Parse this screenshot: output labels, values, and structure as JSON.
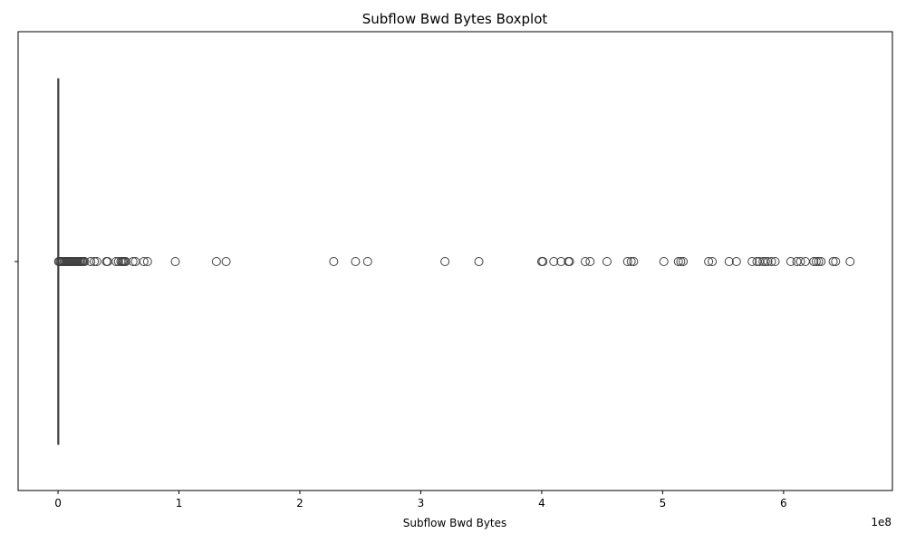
{
  "chart_data": {
    "type": "boxplot",
    "title": "Subflow Bwd Bytes Boxplot",
    "xlabel": "Subflow Bwd Bytes",
    "ylabel": "",
    "x_offset_label": "1e8",
    "xlim": [
      -0.33,
      6.9
    ],
    "x_ticks": [
      0,
      1,
      2,
      3,
      4,
      5,
      6
    ],
    "x_tick_labels": [
      "0",
      "1",
      "2",
      "3",
      "4",
      "5",
      "6"
    ],
    "orientation": "horizontal",
    "grid": false,
    "box": {
      "q1": 0.0,
      "median": 0.0005,
      "q3": 0.001,
      "whisker_low": 0.0,
      "whisker_high": 0.002
    },
    "outliers": [
      0.005,
      0.01,
      0.02,
      0.03,
      0.04,
      0.05,
      0.06,
      0.07,
      0.08,
      0.09,
      0.1,
      0.11,
      0.12,
      0.13,
      0.14,
      0.15,
      0.16,
      0.17,
      0.18,
      0.19,
      0.2,
      0.21,
      0.22,
      0.27,
      0.3,
      0.32,
      0.4,
      0.41,
      0.48,
      0.5,
      0.52,
      0.53,
      0.54,
      0.55,
      0.56,
      0.62,
      0.64,
      0.71,
      0.74,
      0.97,
      1.31,
      1.39,
      2.28,
      2.46,
      2.56,
      3.2,
      3.48,
      4.0,
      4.01,
      4.1,
      4.16,
      4.22,
      4.23,
      4.36,
      4.4,
      4.54,
      4.71,
      4.74,
      4.76,
      5.01,
      5.13,
      5.15,
      5.17,
      5.38,
      5.41,
      5.55,
      5.61,
      5.74,
      5.78,
      5.8,
      5.83,
      5.85,
      5.87,
      5.9,
      5.93,
      6.06,
      6.11,
      6.14,
      6.18,
      6.25,
      6.27,
      6.29,
      6.31,
      6.41,
      6.43,
      6.55
    ],
    "colors": {
      "box_line": "#3f3f3f",
      "outlier_edge": "#3f3f3f",
      "axes": "#000000"
    }
  }
}
